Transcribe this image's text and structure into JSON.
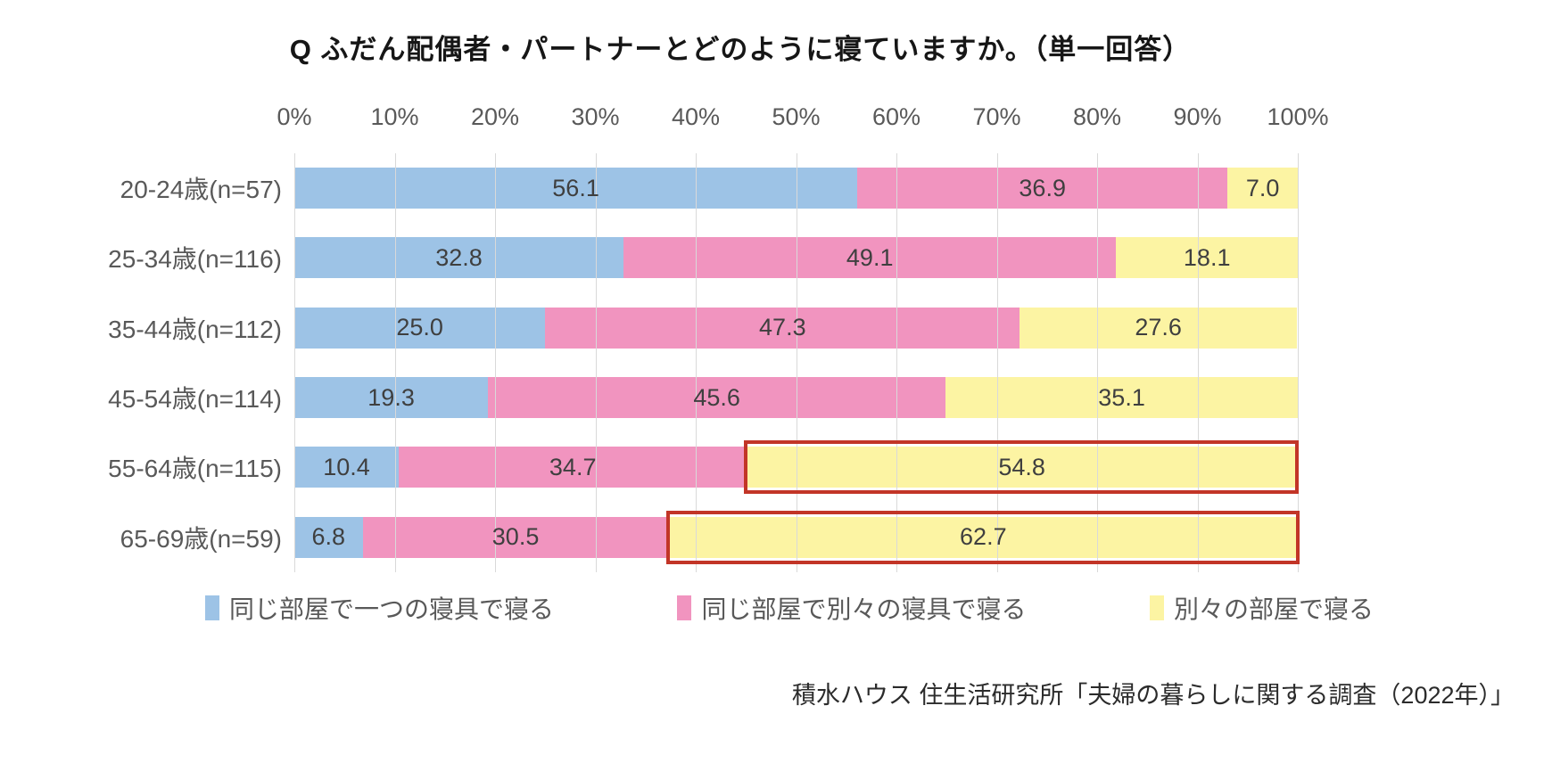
{
  "title": "Q ふだん配偶者・パートナーとどのように寝ていますか。（単一回答）",
  "source": "積水ハウス 住生活研究所「夫婦の暮らしに関する調査（2022年）」",
  "colors": {
    "blue": "#9dc3e6",
    "pink": "#f194bf",
    "yellow": "#fcf4a3",
    "highlight_border": "#c23527",
    "gridline": "#d9d9d9",
    "axis_text": "#595959",
    "value_text": "#3f3f3f"
  },
  "chart_data": {
    "type": "bar",
    "orientation": "horizontal",
    "stacked": true,
    "title": "Q ふだん配偶者・パートナーとどのように寝ていますか。（単一回答）",
    "categories": [
      "20-24歳(n=57)",
      "25-34歳(n=116)",
      "35-44歳(n=112)",
      "45-54歳(n=114)",
      "55-64歳(n=115)",
      "65-69歳(n=59)"
    ],
    "series": [
      {
        "name": "同じ部屋で一つの寝具で寝る",
        "color_key": "blue",
        "values": [
          56.1,
          32.8,
          25.0,
          19.3,
          10.4,
          6.8
        ]
      },
      {
        "name": "同じ部屋で別々の寝具で寝る",
        "color_key": "pink",
        "values": [
          36.9,
          49.1,
          47.3,
          45.6,
          34.7,
          30.5
        ]
      },
      {
        "name": "別々の部屋で寝る",
        "color_key": "yellow",
        "values": [
          7.0,
          18.1,
          27.6,
          35.1,
          54.8,
          62.7
        ]
      }
    ],
    "x_ticks": [
      "0%",
      "10%",
      "20%",
      "30%",
      "40%",
      "50%",
      "60%",
      "70%",
      "80%",
      "90%",
      "100%"
    ],
    "xlim": [
      0,
      100
    ],
    "grid": true,
    "legend_position": "bottom",
    "highlighted": [
      {
        "category_index": 4,
        "series_index": 2
      },
      {
        "category_index": 5,
        "series_index": 2
      }
    ]
  }
}
